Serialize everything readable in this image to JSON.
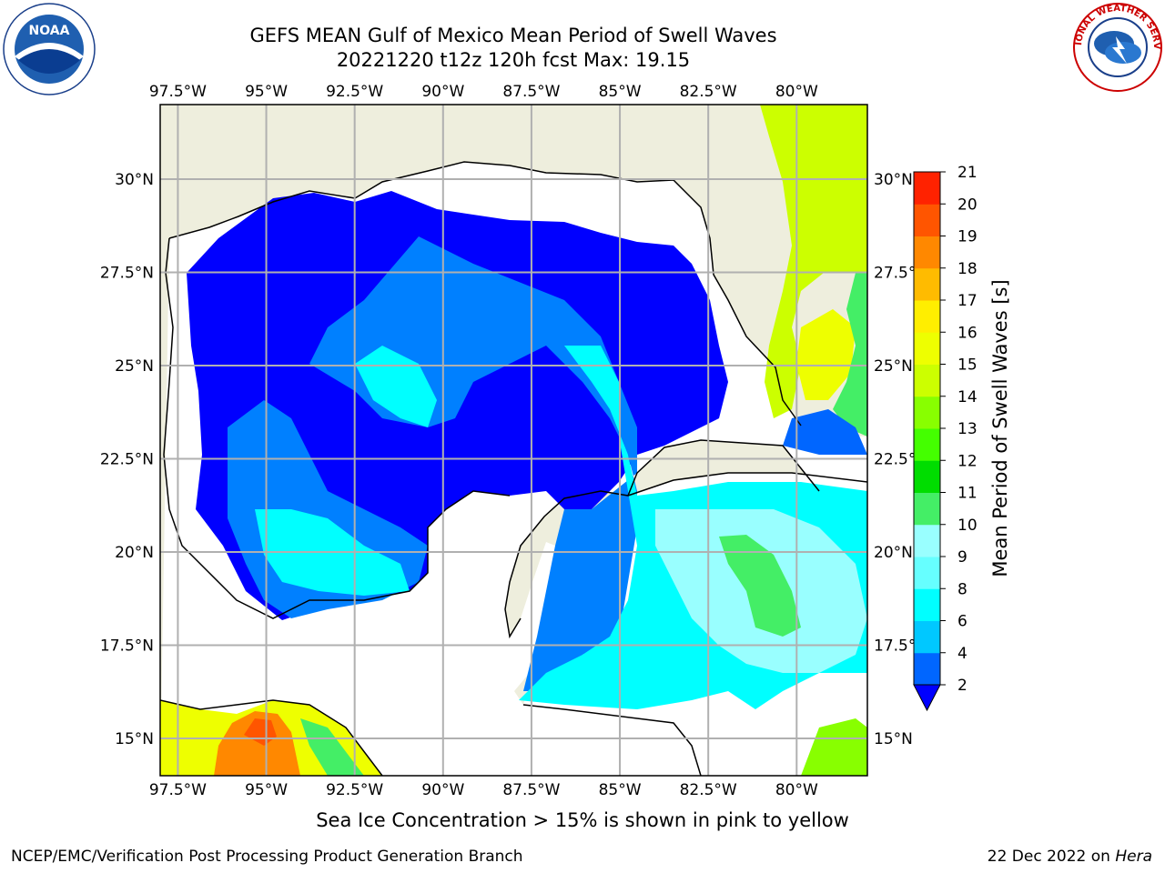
{
  "title_line1": "GEFS MEAN Gulf of Mexico Mean Period of Swell Waves",
  "title_line2": "20221220 t12z 120h fcst   Max: 19.15",
  "map": {
    "lon_range": [
      -98,
      -78
    ],
    "lat_range": [
      14,
      32
    ],
    "lon_ticks": [
      -97.5,
      -95,
      -92.5,
      -90,
      -87.5,
      -85,
      -82.5,
      -80
    ],
    "lon_tick_labels": [
      "97.5°W",
      "95°W",
      "92.5°W",
      "90°W",
      "87.5°W",
      "85°W",
      "82.5°W",
      "80°W"
    ],
    "lat_ticks": [
      15,
      17.5,
      20,
      22.5,
      25,
      27.5,
      30
    ],
    "lat_tick_labels": [
      "15°N",
      "17.5°N",
      "20°N",
      "22.5°N",
      "25°N",
      "27.5°N",
      "30°N"
    ],
    "grid": true,
    "land_color": "#eeeedd",
    "nodata_color": "#ffffff"
  },
  "colorbar": {
    "title": "Mean Period of Swell Waves [s]",
    "levels": [
      2,
      4,
      6,
      8,
      9,
      10,
      11,
      12,
      13,
      14,
      15,
      16,
      17,
      18,
      19,
      20,
      21
    ],
    "colors": [
      "#0066ff",
      "#00c8ff",
      "#00ffff",
      "#66ffff",
      "#99ffff",
      "#44ee66",
      "#00dd00",
      "#44ff00",
      "#88ff00",
      "#ccff00",
      "#eeff00",
      "#ffee00",
      "#ffbb00",
      "#ff8800",
      "#ff5500",
      "#ff2200"
    ],
    "under_color": "#0000ff",
    "extend": "min"
  },
  "footer_note": "Sea Ice Concentration > 15% is shown in pink to yellow",
  "credit_left": "NCEP/EMC/Verification Post Processing Product Generation Branch",
  "credit_date": "22 Dec 2022 on ",
  "credit_host": "Hera",
  "logos": {
    "noaa_text": "NOAA",
    "nws_text": "NATIONAL WEATHER SERVICE"
  }
}
